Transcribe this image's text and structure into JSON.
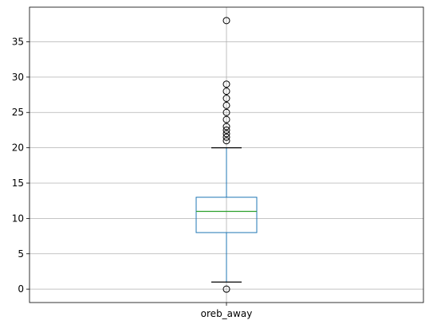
{
  "chart_data": {
    "type": "boxplot",
    "title": "",
    "xlabel": "",
    "ylabel": "",
    "categories": [
      "oreb_away"
    ],
    "ylim": [
      -1.9,
      39.9
    ],
    "yticks": [
      0,
      5,
      10,
      15,
      20,
      25,
      30,
      35
    ],
    "grid": true,
    "boxes": [
      {
        "name": "oreb_away",
        "whisker_low": 1,
        "q1": 8,
        "median": 11,
        "q3": 13,
        "whisker_high": 20,
        "outliers": [
          0,
          21,
          21.5,
          22,
          22.5,
          23,
          24,
          25,
          26,
          27,
          28,
          29,
          38
        ]
      }
    ],
    "colors": {
      "box": "#1f77b4",
      "median": "#2ca02c",
      "whisker": "#1f77b4",
      "cap": "#000000",
      "outlier": "#000000",
      "grid": "#b0b0b0"
    }
  }
}
